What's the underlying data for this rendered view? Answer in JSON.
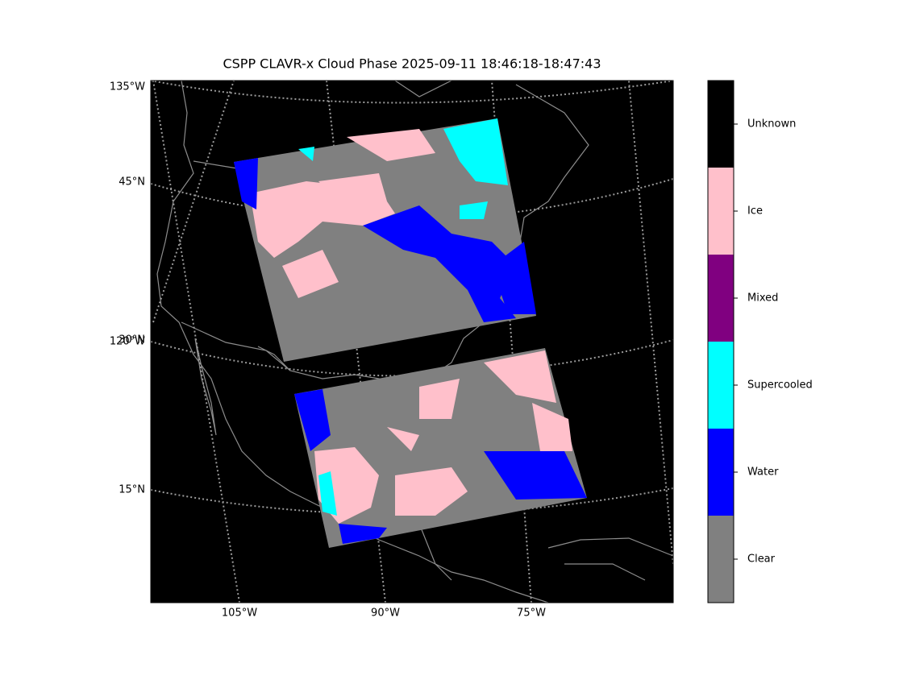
{
  "title": "CSPP CLAVR-x Cloud Phase 2025-09-11 18:46:18-18:47:43",
  "map": {
    "left_labels": [
      "135°W",
      "45°N",
      "120°W",
      "30°N",
      "15°N"
    ],
    "bottom_labels": [
      "105°W",
      "90°W",
      "75°W"
    ]
  },
  "colorbar": {
    "classes": [
      {
        "label": "Clear",
        "color": "#808080"
      },
      {
        "label": "Water",
        "color": "#0000ff"
      },
      {
        "label": "Supercooled",
        "color": "#00ffff"
      },
      {
        "label": "Mixed",
        "color": "#800080"
      },
      {
        "label": "Ice",
        "color": "#ffc0cb"
      },
      {
        "label": "Unknown",
        "color": "#000000"
      }
    ]
  }
}
